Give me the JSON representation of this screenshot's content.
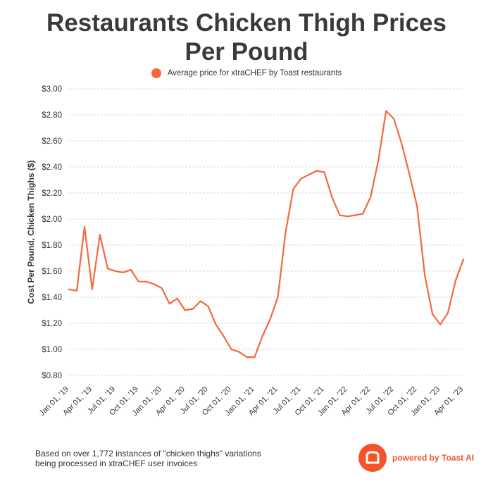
{
  "title_lines": [
    "Restaurants Chicken Thigh Prices",
    "Per Pound"
  ],
  "colors": {
    "series": "#f4693a",
    "title": "#3a3a3a",
    "grid": "#d9d9d9",
    "brand": "#f4532a"
  },
  "chart_data": {
    "type": "line",
    "title": "Restaurants Chicken Thigh Prices Per Pound",
    "ylabel": "Cost Per Pound, Chicken Thighs ($)",
    "xlabel": "",
    "ylim": [
      0.8,
      3.0
    ],
    "y_ticks": [
      "$0.80",
      "$1.00",
      "$1.20",
      "$1.40",
      "$1.60",
      "$1.80",
      "$2.00",
      "$2.20",
      "$2.40",
      "$2.60",
      "$2.80",
      "$3.00"
    ],
    "x_ticks": [
      "Jan 01, '19",
      "Apr 01, '19",
      "Jul 01, '19",
      "Oct 01, '19",
      "Jan 01, '20",
      "Apr 01, '20",
      "Jul 01, '20",
      "Oct 01, '20",
      "Jan 01, '21",
      "Apr 01, '21",
      "Jul 01, '21",
      "Oct 01, '21",
      "Jan 01, '22",
      "Apr 01, '22",
      "Jul 01, '22",
      "Oct 01, '22",
      "Jan 01, '23",
      "Apr 01, '23"
    ],
    "grid": true,
    "legend_position": "top-center",
    "series": [
      {
        "name": "Average price for xtraCHEF by Toast restaurants",
        "x": [
          "2019-01",
          "2019-02",
          "2019-03",
          "2019-04",
          "2019-05",
          "2019-06",
          "2019-07",
          "2019-08",
          "2019-09",
          "2019-10",
          "2019-11",
          "2019-12",
          "2020-01",
          "2020-02",
          "2020-03",
          "2020-04",
          "2020-05",
          "2020-06",
          "2020-07",
          "2020-08",
          "2020-09",
          "2020-10",
          "2020-11",
          "2020-12",
          "2021-01",
          "2021-02",
          "2021-03",
          "2021-04",
          "2021-05",
          "2021-06",
          "2021-07",
          "2021-08",
          "2021-09",
          "2021-10",
          "2021-11",
          "2021-12",
          "2022-01",
          "2022-02",
          "2022-03",
          "2022-04",
          "2022-05",
          "2022-06",
          "2022-07",
          "2022-08",
          "2022-09",
          "2022-10",
          "2022-11",
          "2022-12",
          "2023-01",
          "2023-02",
          "2023-03",
          "2023-04"
        ],
        "y": [
          1.46,
          1.45,
          1.94,
          1.46,
          1.88,
          1.62,
          1.6,
          1.59,
          1.61,
          1.52,
          1.52,
          1.5,
          1.47,
          1.35,
          1.39,
          1.3,
          1.31,
          1.37,
          1.33,
          1.19,
          1.1,
          1.0,
          0.98,
          0.94,
          0.94,
          1.1,
          1.23,
          1.4,
          1.9,
          2.23,
          2.31,
          2.34,
          2.37,
          2.36,
          2.17,
          2.03,
          2.02,
          2.03,
          2.04,
          2.17,
          2.45,
          2.83,
          2.77,
          2.58,
          2.35,
          2.1,
          1.57,
          1.27,
          1.19,
          1.28,
          1.53,
          1.69
        ]
      }
    ]
  },
  "footnote_lines": [
    "Based on over 1,772 instances of \"chicken thighs\" variations",
    "being processed in xtraCHEF user invoices"
  ],
  "brand_text": "powered by Toast AI",
  "brand_icon": "toast-logo-icon"
}
